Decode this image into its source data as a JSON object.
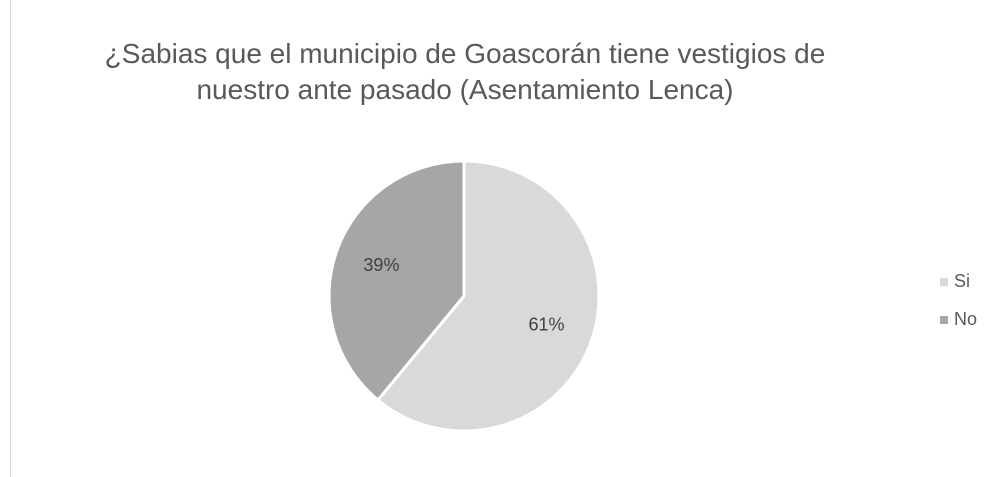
{
  "chart_data": {
    "type": "pie",
    "title": "¿Sabias que el municipio de Goascorán tiene vestigios de nuestro ante pasado (Asentamiento Lenca)",
    "categories": [
      "Si",
      "No"
    ],
    "values": [
      61,
      39
    ],
    "value_labels": [
      "61%",
      "39%"
    ],
    "colors": [
      "#d9d9d9",
      "#a6a6a6"
    ],
    "legend": "right"
  }
}
